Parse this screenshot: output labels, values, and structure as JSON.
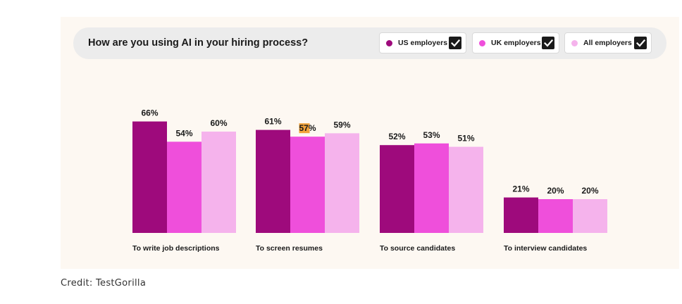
{
  "colors": {
    "panel_bg": "#fdf8f2",
    "header_bg": "#ececec",
    "us": "#9e0a7c",
    "uk": "#ef4fdb",
    "all": "#f5b3ec",
    "highlight": "#f2a23a"
  },
  "legend": {
    "check_icon": "checkmark-icon"
  },
  "credit": "Credit: TestGorilla",
  "chart_data": {
    "type": "bar",
    "title": "How are you using AI in your hiring process?",
    "categories": [
      "To write job descriptions",
      "To screen resumes",
      "To source candidates",
      "To interview candidates"
    ],
    "series": [
      {
        "name": "US employers",
        "values": [
          66,
          61,
          52,
          21
        ],
        "labels": [
          "66%",
          "61%",
          "52%",
          "21%"
        ]
      },
      {
        "name": "UK employers",
        "values": [
          54,
          57,
          53,
          20
        ],
        "labels": [
          "54%",
          "57%",
          "53%",
          "20%"
        ]
      },
      {
        "name": "All employers",
        "values": [
          60,
          59,
          51,
          20
        ],
        "labels": [
          "60%",
          "59%",
          "51%",
          "20%"
        ]
      }
    ],
    "unit": "%",
    "legend_position": "top-right",
    "grid": false
  }
}
